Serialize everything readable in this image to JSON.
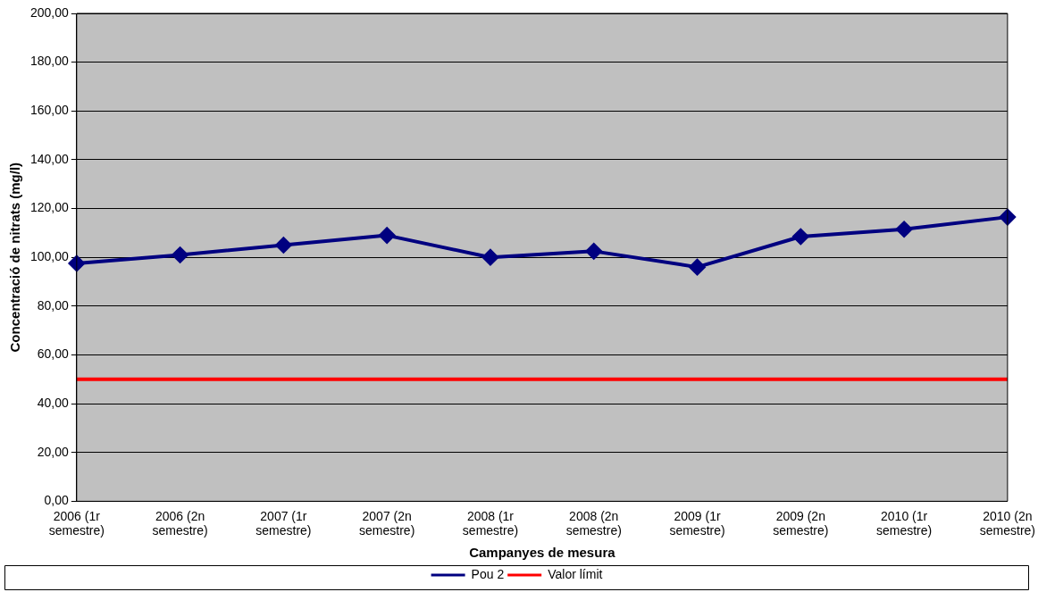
{
  "chart_data": {
    "type": "line",
    "xlabel": "Campanyes de mesura",
    "ylabel": "Concentració de nitrats (mg/l)",
    "categories": [
      "2006 (1r semestre)",
      "2006 (2n semestre)",
      "2007 (1r semestre)",
      "2007 (2n semestre)",
      "2008 (1r semestre)",
      "2008 (2n semestre)",
      "2009 (1r semestre)",
      "2009 (2n semestre)",
      "2010 (1r semestre)",
      "2010 (2n semestre)"
    ],
    "series": [
      {
        "name": "Pou 2",
        "color": "#000080",
        "marker": "diamond",
        "values": [
          97.5,
          101,
          105,
          109,
          100,
          102.5,
          96,
          108.5,
          111.5,
          116.5
        ]
      },
      {
        "name": "Valor límit",
        "color": "#ff0000",
        "marker": "none",
        "values": [
          50,
          50,
          50,
          50,
          50,
          50,
          50,
          50,
          50,
          50
        ]
      }
    ],
    "ylim": [
      0,
      200
    ],
    "yticks": [
      {
        "value": 0,
        "label": "0,00"
      },
      {
        "value": 20,
        "label": "20,00"
      },
      {
        "value": 40,
        "label": "40,00"
      },
      {
        "value": 60,
        "label": "60,00"
      },
      {
        "value": 80,
        "label": "80,00"
      },
      {
        "value": 100,
        "label": "100,00"
      },
      {
        "value": 120,
        "label": "120,00"
      },
      {
        "value": 140,
        "label": "140,00"
      },
      {
        "value": 160,
        "label": "160,00"
      },
      {
        "value": 180,
        "label": "180,00"
      },
      {
        "value": 200,
        "label": "200,00"
      }
    ],
    "grid": "y",
    "legend": "bottom",
    "line_style": "solid"
  }
}
